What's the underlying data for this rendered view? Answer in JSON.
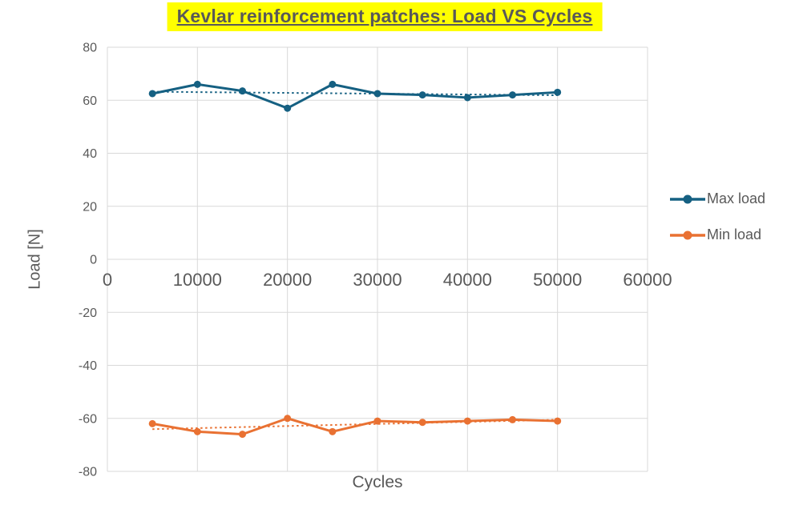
{
  "chart_data": {
    "type": "line",
    "title": "Kevlar reinforcement patches: Load VS Cycles",
    "xlabel": "Cycles",
    "ylabel": "Load [N]",
    "x": [
      5000,
      10000,
      15000,
      20000,
      25000,
      30000,
      35000,
      40000,
      45000,
      50000
    ],
    "series": [
      {
        "name": "Max load",
        "color": "#156082",
        "trendline": "linear-dotted",
        "values": [
          62.5,
          66,
          63.5,
          57,
          66,
          62.5,
          62,
          61,
          62,
          63
        ]
      },
      {
        "name": "Min load",
        "color": "#E97132",
        "trendline": "linear-dotted",
        "values": [
          -62,
          -65,
          -66,
          -60,
          -65,
          -61,
          -61.5,
          -61,
          -60.5,
          -61
        ]
      }
    ],
    "xlim": [
      0,
      60000
    ],
    "ylim": [
      -80,
      80
    ],
    "x_tick_values": [
      0,
      10000,
      20000,
      30000,
      40000,
      50000,
      60000
    ],
    "x_tick_labels": [
      "0",
      "10000",
      "20000",
      "30000",
      "40000",
      "50000",
      "60000"
    ],
    "y_tick_values": [
      80,
      60,
      40,
      20,
      0,
      -20,
      -40,
      -60,
      -80
    ],
    "y_tick_labels": [
      "80",
      "60",
      "40",
      "20",
      "0",
      "-20",
      "-40",
      "-60",
      "-80"
    ],
    "grid": true,
    "legend_position": "right"
  },
  "styles": {
    "title_bg": "#FFFF00",
    "title_color": "#595959",
    "axis_text_color": "#595959",
    "gridline_color": "#D9D9D9",
    "tick_font_size_y": 16,
    "tick_font_size_x": 22
  }
}
